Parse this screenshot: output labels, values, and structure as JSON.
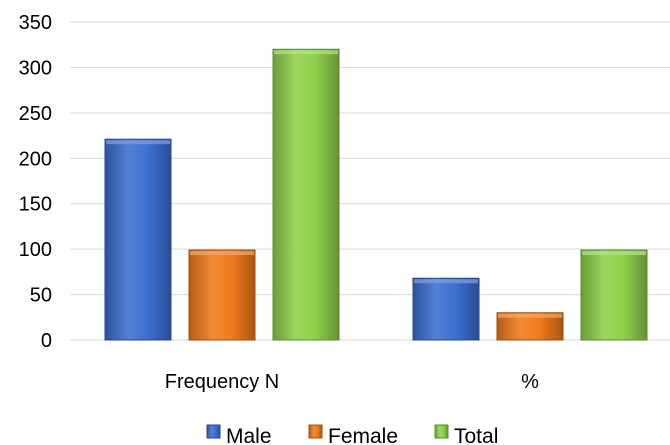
{
  "chart_data": {
    "type": "bar",
    "categories": [
      "Frequency N",
      "%"
    ],
    "series": [
      {
        "name": "Male",
        "values": [
          221,
          68
        ],
        "color": "#3b6fd0"
      },
      {
        "name": "Female",
        "values": [
          99,
          30
        ],
        "color": "#f07a1c"
      },
      {
        "name": "Total",
        "values": [
          320,
          99
        ],
        "color": "#8fd14a"
      }
    ],
    "ylim": [
      0,
      350
    ],
    "yticks": [
      0,
      50,
      100,
      150,
      200,
      250,
      300,
      350
    ],
    "grid": true,
    "legend_position": "bottom",
    "title": "",
    "xlabel": "",
    "ylabel": ""
  }
}
